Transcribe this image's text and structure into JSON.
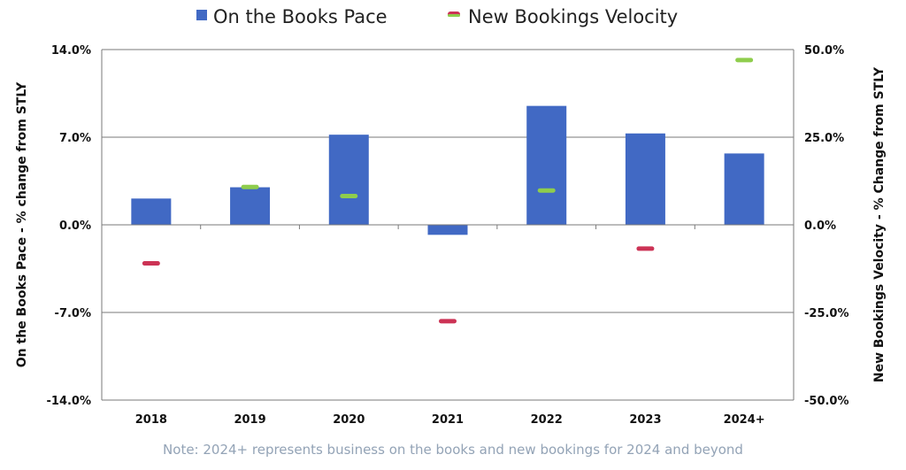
{
  "chart_data": {
    "type": "bar",
    "categories": [
      "2018",
      "2019",
      "2020",
      "2021",
      "2022",
      "2023",
      "2024+"
    ],
    "series": [
      {
        "name": "On the Books Pace",
        "axis": "left",
        "marker": "bar",
        "color": "#4169c4",
        "values": [
          2.1,
          3.0,
          7.2,
          -0.8,
          9.5,
          7.3,
          5.7
        ]
      },
      {
        "name": "New Bookings Velocity",
        "axis": "right",
        "marker": "dash",
        "color_positive": "#8fcd4d",
        "color_negative": "#cc3355",
        "values": [
          -11.0,
          10.8,
          8.2,
          -27.5,
          9.8,
          -6.8,
          47.0
        ]
      }
    ],
    "ylabel": "On the Books Pace - % change from STLY",
    "y2label": "New Bookings Velocity - % Change from STLY",
    "ylim": [
      -14.0,
      14.0
    ],
    "y2lim": [
      -50.0,
      50.0
    ],
    "yticks": [
      "14.0%",
      "7.0%",
      "0.0%",
      "-7.0%",
      "-14.0%"
    ],
    "y2ticks": [
      "50.0%",
      "25.0%",
      "0.0%",
      "-25.0%",
      "-50.0%"
    ],
    "grid": true,
    "legend_position": "top-center",
    "note": "Note: 2024+ represents business on the books and new bookings for 2024 and beyond"
  }
}
